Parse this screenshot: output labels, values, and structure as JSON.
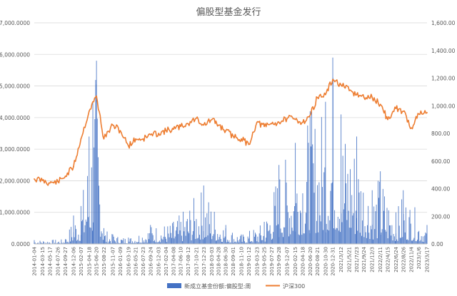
{
  "chart_data": {
    "type": "bar+line",
    "title": "偏股型基金发行",
    "xlabel": "",
    "ylabel": "",
    "grid": true,
    "legend_position": "bottom",
    "y_left": {
      "min": 0,
      "max": 7000,
      "ticks": [
        "0.0000",
        "1,000.0000",
        "2,000.0000",
        "3,000.0000",
        "4,000.0000",
        "5,000.0000",
        "6,000.0000",
        "7,000.0000"
      ]
    },
    "y_right": {
      "min": 0,
      "max": 1600,
      "ticks": [
        "0.00",
        "200.00",
        "400.00",
        "600.00",
        "800.00",
        "1,000.00",
        "1,200.00",
        "1,400.00",
        "1,600.00"
      ]
    },
    "x_tick_labels": [
      "2014-01-04",
      "2014-03-15",
      "2014-05-17",
      "2014-07-26",
      "2014-09-27",
      "2014-12-06",
      "2015-02-07",
      "2015-04-18",
      "2015-06-20",
      "2015-08-22",
      "2015-11-07",
      "2016-01-09",
      "2016-03-19",
      "2016-05-21",
      "2016-07-23",
      "2016-09-24",
      "2016-12-03",
      "2017-02-04",
      "2017-04-08",
      "2017-06-10",
      "2017-08-12",
      "2017-10-21",
      "2017-12-23",
      "2018-03-03",
      "2018-04-28",
      "2018-06-30",
      "2018-09-01",
      "2018-11-10",
      "2019-01-12",
      "2019-03-23",
      "2019-05-25",
      "2019-07-27",
      "2019-09-28",
      "2019-12-07",
      "2020-02-15",
      "2020-04-18",
      "2020-06-20",
      "2020-08-21",
      "2020-10-30",
      "2020-12-31",
      "2021/3/12",
      "2021/5/21",
      "2021/7/23",
      "2021/9/24",
      "2021/12/3",
      "2022/2/11",
      "2022/4/15",
      "2022/6/24",
      "2022/8/26",
      "2022/11/4",
      "2023/1/6",
      "2023/3/17"
    ],
    "series": [
      {
        "name": "新成立基金份额:偏股型:周",
        "type": "bar",
        "axis": "left",
        "color": "#4472C4",
        "anchors": [
          {
            "x": "2014-01-04",
            "y": 120
          },
          {
            "x": "2014-09-27",
            "y": 150
          },
          {
            "x": "2014-12-06",
            "y": 900
          },
          {
            "x": "2015-02-07",
            "y": 1200
          },
          {
            "x": "2015-04-18",
            "y": 3400
          },
          {
            "x": "2015-05-20",
            "y": 4500
          },
          {
            "x": "2015-06-20",
            "y": 5800
          },
          {
            "x": "2015-08-22",
            "y": 500
          },
          {
            "x": "2015-11-07",
            "y": 300
          },
          {
            "x": "2016-03-19",
            "y": 200
          },
          {
            "x": "2016-09-24",
            "y": 600
          },
          {
            "x": "2017-04-08",
            "y": 700
          },
          {
            "x": "2017-12-23",
            "y": 1850
          },
          {
            "x": "2018-06-30",
            "y": 600
          },
          {
            "x": "2018-11-10",
            "y": 300
          },
          {
            "x": "2019-05-25",
            "y": 700
          },
          {
            "x": "2019-09-28",
            "y": 2500
          },
          {
            "x": "2020-02-15",
            "y": 3200
          },
          {
            "x": "2020-06-20",
            "y": 4200
          },
          {
            "x": "2020-10-30",
            "y": 4500
          },
          {
            "x": "2020-12-31",
            "y": 5900
          },
          {
            "x": "2021/3/12",
            "y": 4100
          },
          {
            "x": "2021/7/23",
            "y": 3400
          },
          {
            "x": "2021/12/3",
            "y": 1700
          },
          {
            "x": "2022/2/11",
            "y": 2300
          },
          {
            "x": "2022/6/24",
            "y": 1000
          },
          {
            "x": "2022/8/26",
            "y": 1700
          },
          {
            "x": "2023/3/17",
            "y": 600
          }
        ]
      },
      {
        "name": "沪深300",
        "type": "line",
        "axis": "right",
        "color": "#ED7D31",
        "points": [
          {
            "x": "2014-01-04",
            "y": 470
          },
          {
            "x": "2014-03-15",
            "y": 460
          },
          {
            "x": "2014-05-17",
            "y": 440
          },
          {
            "x": "2014-07-26",
            "y": 450
          },
          {
            "x": "2014-09-27",
            "y": 490
          },
          {
            "x": "2014-12-06",
            "y": 560
          },
          {
            "x": "2015-02-07",
            "y": 760
          },
          {
            "x": "2015-04-18",
            "y": 960
          },
          {
            "x": "2015-06-20",
            "y": 1070
          },
          {
            "x": "2015-08-22",
            "y": 760
          },
          {
            "x": "2015-11-07",
            "y": 860
          },
          {
            "x": "2016-01-09",
            "y": 820
          },
          {
            "x": "2016-03-19",
            "y": 710
          },
          {
            "x": "2016-05-21",
            "y": 760
          },
          {
            "x": "2016-07-23",
            "y": 760
          },
          {
            "x": "2016-09-24",
            "y": 790
          },
          {
            "x": "2016-12-03",
            "y": 800
          },
          {
            "x": "2017-02-04",
            "y": 820
          },
          {
            "x": "2017-04-08",
            "y": 830
          },
          {
            "x": "2017-06-10",
            "y": 850
          },
          {
            "x": "2017-08-12",
            "y": 870
          },
          {
            "x": "2017-10-21",
            "y": 910
          },
          {
            "x": "2017-12-23",
            "y": 860
          },
          {
            "x": "2018-03-03",
            "y": 900
          },
          {
            "x": "2018-04-28",
            "y": 860
          },
          {
            "x": "2018-06-30",
            "y": 820
          },
          {
            "x": "2018-09-01",
            "y": 780
          },
          {
            "x": "2018-11-10",
            "y": 760
          },
          {
            "x": "2019-01-12",
            "y": 720
          },
          {
            "x": "2019-03-23",
            "y": 880
          },
          {
            "x": "2019-05-25",
            "y": 850
          },
          {
            "x": "2019-07-27",
            "y": 870
          },
          {
            "x": "2019-09-28",
            "y": 880
          },
          {
            "x": "2019-12-07",
            "y": 910
          },
          {
            "x": "2020-02-15",
            "y": 900
          },
          {
            "x": "2020-04-18",
            "y": 880
          },
          {
            "x": "2020-06-20",
            "y": 930
          },
          {
            "x": "2020-08-21",
            "y": 1060
          },
          {
            "x": "2020-10-30",
            "y": 1080
          },
          {
            "x": "2020-12-31",
            "y": 1190
          },
          {
            "x": "2021/3/12",
            "y": 1150
          },
          {
            "x": "2021/5/21",
            "y": 1110
          },
          {
            "x": "2021/7/23",
            "y": 1080
          },
          {
            "x": "2021/9/24",
            "y": 1060
          },
          {
            "x": "2021/12/3",
            "y": 1060
          },
          {
            "x": "2022/2/11",
            "y": 1010
          },
          {
            "x": "2022/4/15",
            "y": 900
          },
          {
            "x": "2022/6/24",
            "y": 980
          },
          {
            "x": "2022/8/26",
            "y": 960
          },
          {
            "x": "2022/11/4",
            "y": 840
          },
          {
            "x": "2023/1/6",
            "y": 940
          },
          {
            "x": "2023/3/17",
            "y": 950
          }
        ]
      }
    ]
  }
}
